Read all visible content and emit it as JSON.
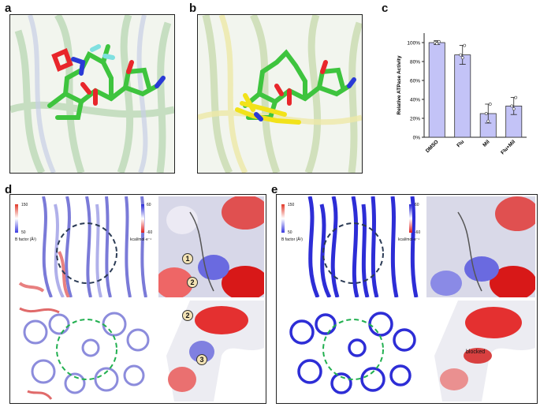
{
  "panels": {
    "a": "a",
    "b": "b",
    "c": "c",
    "d": "d",
    "e": "e"
  },
  "colors": {
    "ligand_carbon": "#3ec43e",
    "oxygen": "#e8262b",
    "nitrogen": "#2a3ad6",
    "fluorine": "#7fe0e0",
    "yellow_ligand": "#f2e21a",
    "bar_fill": "#c3c3f7",
    "bar_stroke": "#333333",
    "bfactor_high": "#e23a2a",
    "bfactor_low": "#3a3ae0",
    "elec_positive": "#2a2ad8",
    "elec_negative": "#e02020",
    "circle_dark": "#2b3b55",
    "circle_green": "#22b050"
  },
  "chart_data": {
    "type": "bar",
    "categories": [
      "DMSO",
      "Flu",
      "Mil",
      "Flu+Mil"
    ],
    "values": [
      100,
      87,
      25,
      33
    ],
    "errors": [
      2,
      10,
      10,
      9
    ],
    "points": [
      [
        100,
        99,
        101
      ],
      [
        87,
        84,
        97
      ],
      [
        25,
        17,
        35
      ],
      [
        33,
        30,
        42
      ]
    ],
    "ylabel": "Relative ATPase Activity",
    "yticks": [
      "0%",
      "20%",
      "40%",
      "60%",
      "80%",
      "100%"
    ],
    "ylim": [
      0,
      110
    ],
    "xlabel": "",
    "grid": false
  },
  "colorbars": {
    "bfactor": {
      "max": "150",
      "min": "50",
      "label": "B factor (Å²)"
    },
    "potential": {
      "max": "60",
      "min": "-60",
      "label": "kcal/mol·e⁻¹"
    }
  },
  "markers": {
    "d_top_1": "1",
    "d_top_2": "2",
    "d_bottom_2": "2",
    "d_bottom_3": "3"
  },
  "annotations": {
    "blocked": "blocked"
  }
}
